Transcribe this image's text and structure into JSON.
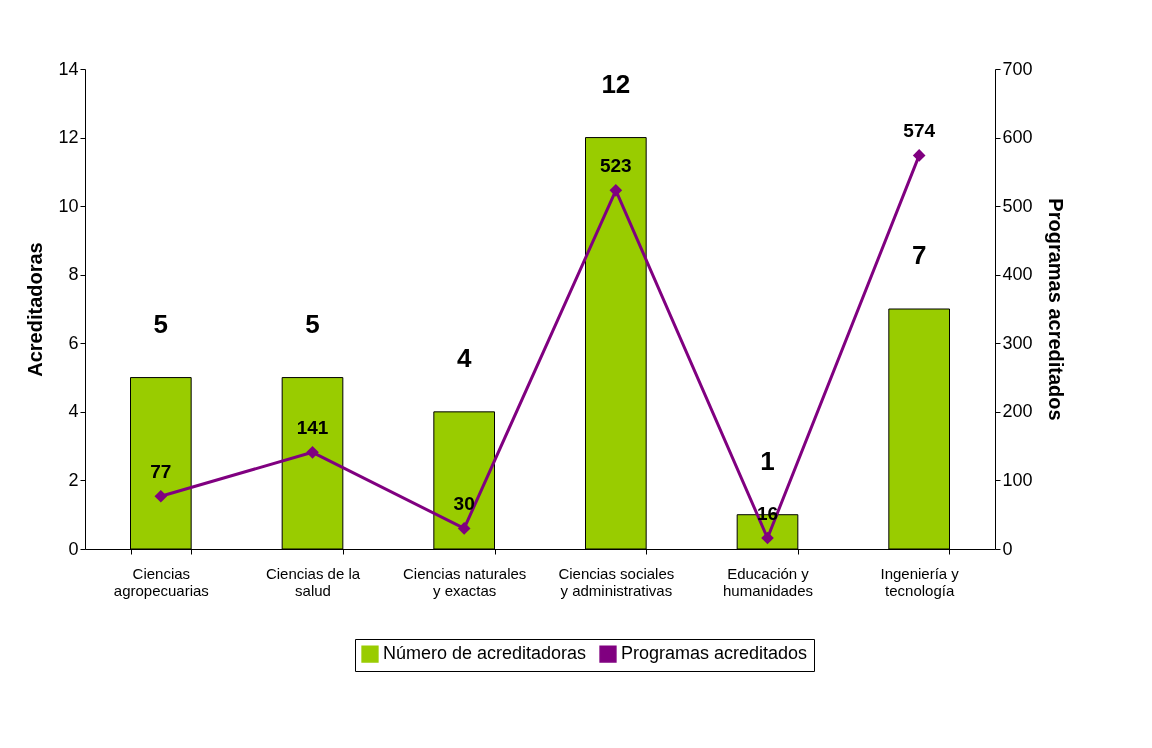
{
  "chart_data": {
    "type": "bar",
    "categories": [
      "Ciencias agropecuarias",
      "Ciencias de la salud",
      "Ciencias naturales y exactas",
      "Ciencias sociales y administrativas",
      "Educación y humanidades",
      "Ingeniería y tecnología"
    ],
    "series": [
      {
        "name": "Número de acreditadoras",
        "color": "#99cc00",
        "values": [
          5,
          5,
          4,
          12,
          1,
          7
        ]
      },
      {
        "name": "Programas acreditados",
        "type": "line",
        "axis": "y2",
        "color": "#800080",
        "marker": "diamond",
        "values": [
          77,
          141,
          30,
          523,
          16,
          574
        ]
      }
    ],
    "ylabel": "Acreditadoras",
    "y2label": "Programas acreditados",
    "ylim": [
      0,
      14
    ],
    "yticks": [
      0,
      2,
      4,
      6,
      8,
      10,
      12,
      14
    ],
    "y2lim": [
      0,
      700
    ],
    "y2ticks": [
      0,
      100,
      200,
      300,
      400,
      500,
      600,
      700
    ],
    "data_labels": true,
    "legend": "bottom",
    "grid": false
  }
}
